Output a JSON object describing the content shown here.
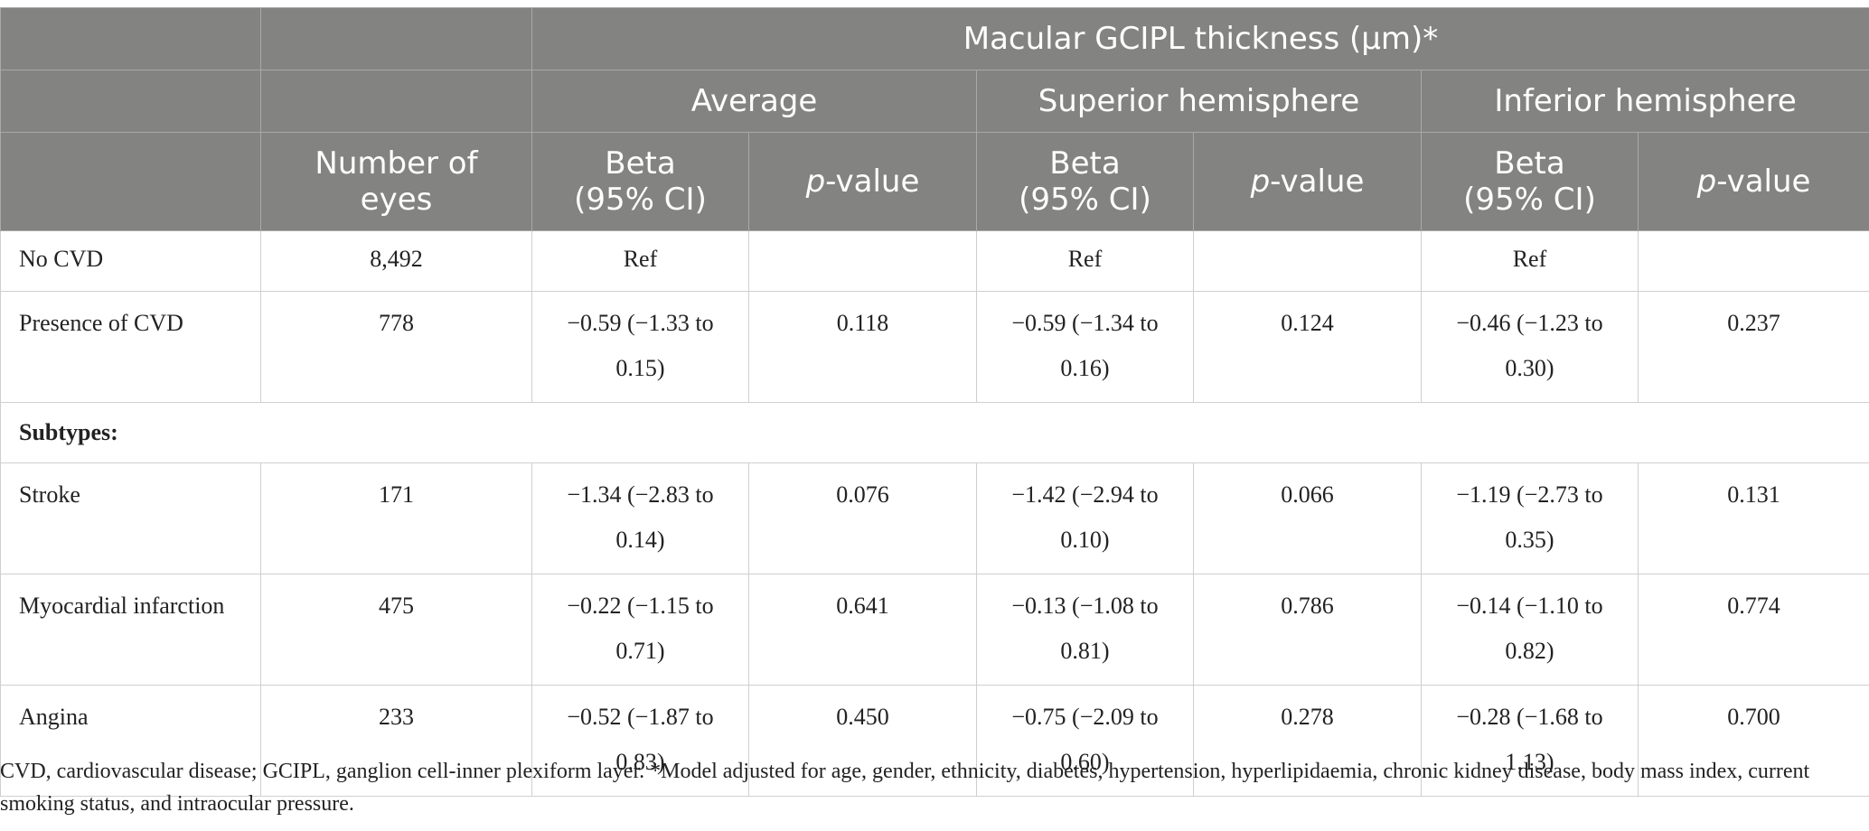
{
  "table": {
    "header_group": "Macular GCIPL thickness (μm)*",
    "subgroups": [
      "Average",
      "Superior hemisphere",
      "Inferior hemisphere"
    ],
    "col_number": "Number of eyes",
    "col_beta": "Beta (95% CI)",
    "col_p_italic": "p",
    "col_p_rest": "-value",
    "rows": [
      {
        "label": "No CVD",
        "n": "8,492",
        "avg_beta": "Ref",
        "avg_p": "",
        "sup_beta": "Ref",
        "sup_p": "",
        "inf_beta": "Ref",
        "inf_p": ""
      },
      {
        "label": "Presence of CVD",
        "n": "778",
        "avg_beta": "−0.59 (−1.33 to 0.15)",
        "avg_p": "0.118",
        "sup_beta": "−0.59 (−1.34 to 0.16)",
        "sup_p": "0.124",
        "inf_beta": "−0.46 (−1.23 to 0.30)",
        "inf_p": "0.237"
      },
      {
        "section": "Subtypes:"
      },
      {
        "label": "Stroke",
        "n": "171",
        "avg_beta": "−1.34 (−2.83 to 0.14)",
        "avg_p": "0.076",
        "sup_beta": "−1.42 (−2.94 to 0.10)",
        "sup_p": "0.066",
        "inf_beta": "−1.19 (−2.73 to 0.35)",
        "inf_p": "0.131"
      },
      {
        "label": "Myocardial infarction",
        "n": "475",
        "avg_beta": "−0.22 (−1.15 to 0.71)",
        "avg_p": "0.641",
        "sup_beta": "−0.13 (−1.08 to 0.81)",
        "sup_p": "0.786",
        "inf_beta": "−0.14 (−1.10 to 0.82)",
        "inf_p": "0.774"
      },
      {
        "label": "Angina",
        "n": "233",
        "avg_beta": "−0.52 (−1.87 to 0.83)",
        "avg_p": "0.450",
        "sup_beta": "−0.75 (−2.09 to 0.60)",
        "sup_p": "0.278",
        "inf_beta": "−0.28 (−1.68 to 1.13)",
        "inf_p": "0.700"
      }
    ]
  },
  "footnote": "CVD, cardiovascular disease; GCIPL, ganglion cell-inner plexiform layer. *Model adjusted for age, gender, ethnicity, diabetes, hypertension, hyperlipidaemia, chronic kidney disease, body mass index, current smoking status, and intraocular pressure."
}
